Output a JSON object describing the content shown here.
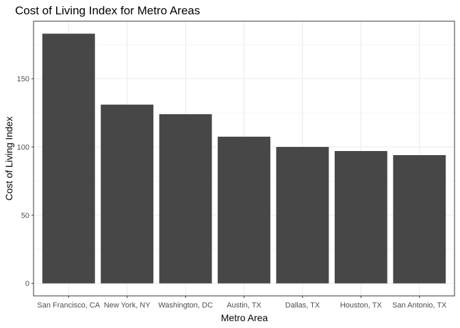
{
  "chart_data": {
    "type": "bar",
    "title": "Cost of Living Index for Metro Areas",
    "xlabel": "Metro Area",
    "ylabel": "Cost of Living Index",
    "categories": [
      "San Francisco, CA",
      "New York, NY",
      "Washington, DC",
      "Austin, TX",
      "Dallas, TX",
      "Houston, TX",
      "San Antonio, TX"
    ],
    "values": [
      183,
      131,
      124,
      107.5,
      100,
      97,
      94
    ],
    "ylim": [
      -9.15,
      192.15
    ],
    "yticks": [
      0,
      50,
      100,
      150
    ],
    "grid": true,
    "legend": "none",
    "bar_color": "#474747",
    "grid_color": "#ebebeb",
    "panel_border_color": "#333333"
  }
}
